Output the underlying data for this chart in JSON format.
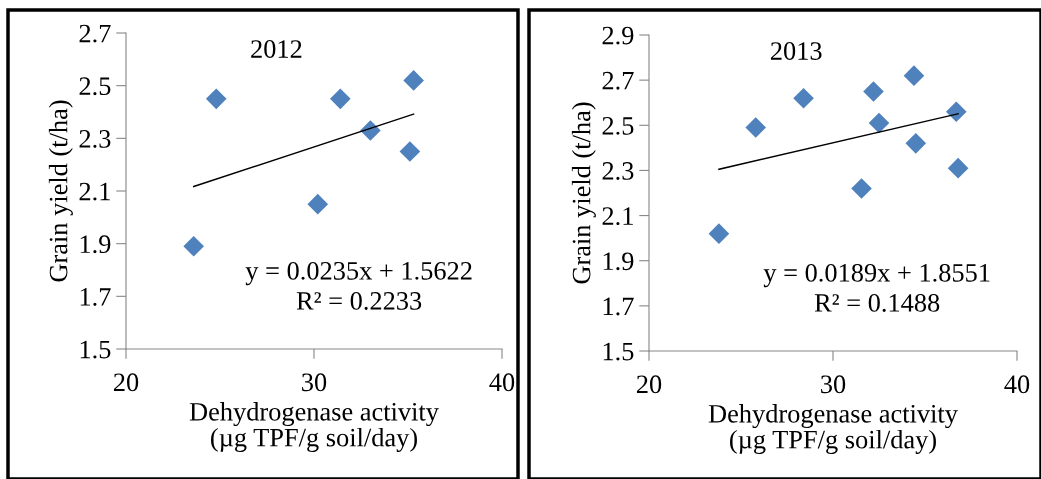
{
  "chart_data": [
    {
      "type": "scatter",
      "title": "2012",
      "xlabel": "Dehydrogenase activity\n(µg TPF/g soil/day)",
      "ylabel": "Grain yield (t/ha)",
      "annotations": [
        "y = 0.0235x + 1.5622",
        "R² = 0.2233"
      ],
      "series": [
        {
          "color": "#4f81bd",
          "marker": "diamond",
          "x": [
            23.6,
            24.8,
            30.2,
            31.4,
            33.0,
            35.1,
            35.3
          ],
          "values": [
            1.89,
            2.45,
            2.05,
            2.45,
            2.33,
            2.25,
            2.52
          ]
        },
        {
          "type": "line",
          "color": "#000000",
          "marker": "none",
          "x": [
            23.6,
            35.3
          ],
          "values": [
            2.117,
            2.392
          ]
        }
      ],
      "xlim": [
        20,
        40
      ],
      "xticks": [
        20,
        30,
        40
      ],
      "ylim": [
        1.5,
        2.7
      ],
      "yticks": [
        1.5,
        1.7,
        1.9,
        2.1,
        2.3,
        2.5,
        2.7
      ],
      "grid": false
    },
    {
      "type": "scatter",
      "title": "2013",
      "xlabel": "Dehydrogenase activity\n(µg TPF/g soil/day)",
      "ylabel": "Grain yield (t/ha)",
      "annotations": [
        "y = 0.0189x + 1.8551",
        "R² = 0.1488"
      ],
      "series": [
        {
          "color": "#4f81bd",
          "marker": "diamond",
          "x": [
            23.8,
            25.8,
            28.4,
            31.55,
            32.2,
            32.5,
            34.4,
            34.5,
            36.7,
            36.8
          ],
          "values": [
            2.02,
            2.49,
            2.62,
            2.22,
            2.65,
            2.51,
            2.72,
            2.42,
            2.56,
            2.31
          ]
        },
        {
          "type": "line",
          "color": "#000000",
          "marker": "none",
          "x": [
            23.8,
            36.8
          ],
          "values": [
            2.305,
            2.551
          ]
        }
      ],
      "xlim": [
        20,
        40
      ],
      "xticks": [
        20,
        30,
        40
      ],
      "ylim": [
        1.5,
        2.9
      ],
      "yticks": [
        1.5,
        1.7,
        1.9,
        2.1,
        2.3,
        2.5,
        2.7,
        2.9
      ],
      "grid": false
    }
  ]
}
